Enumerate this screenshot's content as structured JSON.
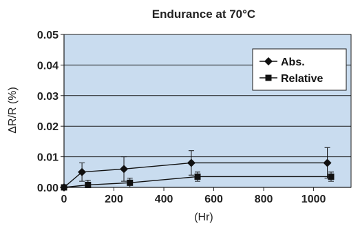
{
  "chart_data": {
    "type": "line",
    "title": "Endurance at 70°C",
    "xlabel": "(Hr)",
    "ylabel": "ΔR/R (%)",
    "xlim": [
      0,
      1150
    ],
    "ylim": [
      0,
      0.05
    ],
    "x_ticks": [
      "0",
      "200",
      "400",
      "600",
      "800",
      "1000"
    ],
    "y_ticks": [
      "0.00",
      "0.01",
      "0.02",
      "0.03",
      "0.04",
      "0.05"
    ],
    "grid": "horizontal",
    "legend_position": "top-right",
    "plot_background": "#c9dcef",
    "series": [
      {
        "name": "Abs.",
        "marker": "diamond",
        "points": [
          {
            "x": 0,
            "y": 0.0,
            "err": 0.0
          },
          {
            "x": 72,
            "y": 0.005,
            "err": 0.003
          },
          {
            "x": 240,
            "y": 0.006,
            "err": 0.004
          },
          {
            "x": 510,
            "y": 0.008,
            "err": 0.004
          },
          {
            "x": 1055,
            "y": 0.008,
            "err": 0.005
          }
        ]
      },
      {
        "name": "Relative",
        "marker": "square",
        "points": [
          {
            "x": 0,
            "y": 0.0,
            "err": 0.0
          },
          {
            "x": 96,
            "y": 0.0008,
            "err": 0.0015
          },
          {
            "x": 264,
            "y": 0.0015,
            "err": 0.0015
          },
          {
            "x": 535,
            "y": 0.0035,
            "err": 0.0015
          },
          {
            "x": 1070,
            "y": 0.0035,
            "err": 0.0015
          }
        ]
      }
    ]
  }
}
